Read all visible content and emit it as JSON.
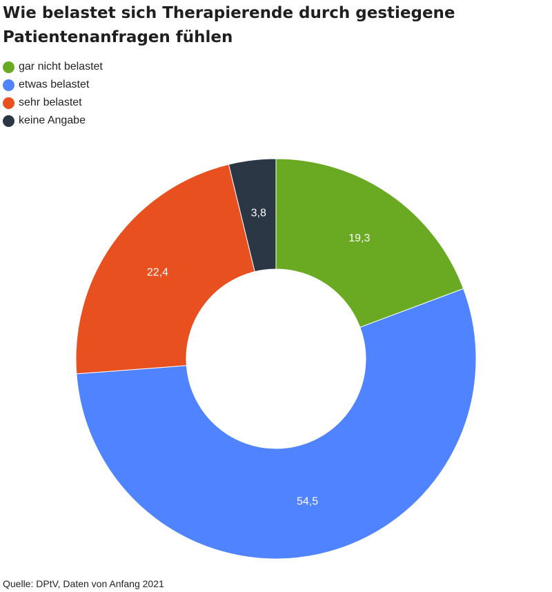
{
  "chart_data": {
    "type": "pie",
    "title": "Wie belastet sich Therapierende durch gestiegene Patientenanfragen fühlen",
    "legend_position": "top-left",
    "donut": true,
    "categories": [
      "gar nicht belastet",
      "etwas belastet",
      "sehr belastet",
      "keine Angabe"
    ],
    "values": [
      19.3,
      54.5,
      22.4,
      3.8
    ],
    "value_labels": [
      "19,3",
      "54,5",
      "22,4",
      "3,8"
    ],
    "colors": [
      "#6aaa22",
      "#4f83ff",
      "#e9501f",
      "#2b3744"
    ]
  },
  "source": "Quelle: DPtV, Daten von Anfang 2021"
}
